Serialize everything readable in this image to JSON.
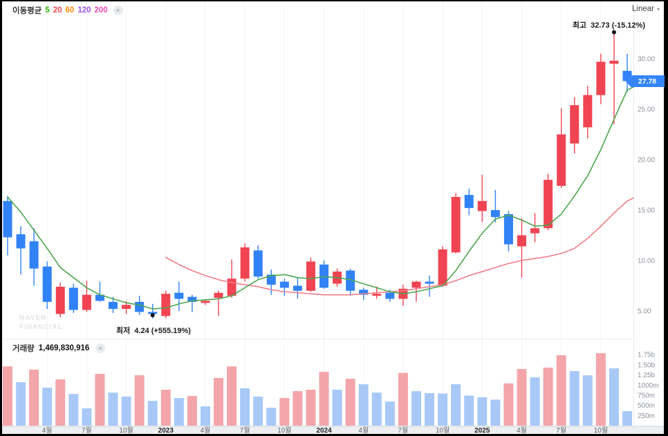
{
  "header": {
    "ma_label": "이동평균",
    "ma_periods": [
      {
        "label": "5",
        "color": "#2db400"
      },
      {
        "label": "20",
        "color": "#f04452"
      },
      {
        "label": "60",
        "color": "#ff8a00"
      },
      {
        "label": "120",
        "color": "#9b50e8"
      },
      {
        "label": "200",
        "color": "#ef4bb8"
      }
    ],
    "scale_selector": "Linear"
  },
  "icons": {
    "close": "×",
    "chevron_down": "▾"
  },
  "annotations": {
    "high_label": "최고",
    "high_value": "32.73 (-15.12%)",
    "low_label": "최저",
    "low_value": "4.24 (+555.19%)"
  },
  "volume_header": {
    "label": "거래량",
    "value": "1,469,830,916"
  },
  "price_badge": "27.78",
  "watermark": {
    "line1": "NAVER",
    "line2": "FINANCIAL"
  },
  "colors": {
    "up": "#f04452",
    "down": "#3182f6",
    "vol_up": "#f4a5aa",
    "vol_down": "#a8c9f8",
    "ma5_line": "#4ca64c",
    "ma20_line": "#ef7e86",
    "badge": "#3485fa",
    "grid": "#f1f2f5",
    "axis_text": "#8b919b",
    "strip_bg": "#edeff2",
    "strip_border": "#cdd0d5",
    "time_text": "#5f646c",
    "year_text": "#1f2124",
    "dot": "#141414"
  },
  "chart_data": {
    "type": "candlestick_with_volume",
    "title": "",
    "x_unit": "month",
    "months": [
      "2022-01",
      "2022-02",
      "2022-03",
      "2022-04",
      "2022-05",
      "2022-06",
      "2022-07",
      "2022-08",
      "2022-09",
      "2022-10",
      "2022-11",
      "2022-12",
      "2023-01",
      "2023-02",
      "2023-03",
      "2023-04",
      "2023-05",
      "2023-06",
      "2023-07",
      "2023-08",
      "2023-09",
      "2023-10",
      "2023-11",
      "2023-12",
      "2024-01",
      "2024-02",
      "2024-03",
      "2024-04",
      "2024-05",
      "2024-06",
      "2024-07",
      "2024-08",
      "2024-09",
      "2024-10",
      "2024-11",
      "2024-12",
      "2025-01",
      "2025-02",
      "2025-03",
      "2025-04",
      "2025-05",
      "2025-06",
      "2025-07",
      "2025-08",
      "2025-09",
      "2025-10",
      "2025-11",
      "2025-12"
    ],
    "candles_ohlc": [
      [
        15.9,
        16.4,
        10.5,
        12.3
      ],
      [
        12.6,
        13.4,
        8.6,
        11.2
      ],
      [
        11.9,
        13.2,
        7.5,
        9.2
      ],
      [
        9.4,
        9.9,
        5.2,
        5.9
      ],
      [
        4.7,
        7.8,
        4.4,
        7.4
      ],
      [
        7.3,
        7.7,
        4.8,
        5.1
      ],
      [
        5.1,
        8.0,
        4.9,
        6.6
      ],
      [
        6.6,
        7.9,
        5.9,
        6.0
      ],
      [
        5.9,
        6.4,
        4.8,
        5.2
      ],
      [
        5.2,
        6.0,
        4.7,
        5.6
      ],
      [
        5.9,
        6.5,
        4.6,
        4.9
      ],
      [
        4.9,
        5.7,
        4.24,
        4.7
      ],
      [
        4.5,
        7.0,
        4.3,
        6.7
      ],
      [
        6.8,
        7.9,
        5.0,
        6.2
      ],
      [
        6.4,
        6.6,
        4.9,
        5.9
      ],
      [
        5.8,
        6.1,
        5.6,
        6.0
      ],
      [
        6.3,
        7.0,
        4.5,
        6.8
      ],
      [
        6.5,
        10.1,
        6.3,
        8.2
      ],
      [
        8.2,
        11.7,
        7.9,
        11.3
      ],
      [
        11.0,
        11.5,
        8.2,
        8.4
      ],
      [
        8.6,
        9.1,
        6.6,
        7.6
      ],
      [
        7.9,
        8.2,
        6.5,
        7.3
      ],
      [
        7.5,
        8.3,
        6.2,
        7.0
      ],
      [
        7.0,
        10.3,
        6.9,
        9.9
      ],
      [
        9.6,
        10.0,
        7.2,
        7.3
      ],
      [
        7.7,
        9.2,
        7.4,
        8.9
      ],
      [
        9.0,
        9.2,
        6.5,
        7.0
      ],
      [
        7.1,
        7.3,
        6.1,
        6.6
      ],
      [
        6.5,
        7.4,
        6.2,
        6.7
      ],
      [
        6.8,
        7.1,
        5.9,
        6.2
      ],
      [
        6.2,
        7.6,
        5.5,
        7.2
      ],
      [
        7.3,
        8.0,
        5.9,
        7.9
      ],
      [
        7.9,
        8.5,
        6.4,
        7.7
      ],
      [
        7.5,
        11.4,
        7.4,
        11.1
      ],
      [
        10.8,
        16.7,
        10.7,
        16.3
      ],
      [
        16.5,
        17.1,
        14.5,
        15.2
      ],
      [
        14.9,
        18.5,
        13.8,
        15.9
      ],
      [
        15.0,
        17.0,
        13.8,
        14.3
      ],
      [
        14.6,
        14.9,
        10.9,
        11.6
      ],
      [
        11.4,
        14.2,
        8.3,
        12.5
      ],
      [
        12.7,
        14.7,
        11.8,
        13.2
      ],
      [
        13.2,
        18.6,
        13.0,
        18.0
      ],
      [
        17.4,
        25.1,
        17.2,
        22.5
      ],
      [
        21.6,
        26.2,
        20.6,
        25.4
      ],
      [
        23.2,
        27.3,
        22.1,
        26.4
      ],
      [
        26.4,
        30.5,
        25.5,
        29.7
      ],
      [
        29.5,
        32.73,
        23.5,
        29.8
      ],
      [
        28.8,
        30.5,
        26.7,
        27.78
      ]
    ],
    "volumes_millions": [
      1460,
      1070,
      1380,
      935,
      1140,
      780,
      425,
      1275,
      815,
      715,
      1240,
      610,
      885,
      680,
      730,
      475,
      1175,
      1460,
      920,
      715,
      440,
      680,
      850,
      885,
      1325,
      885,
      1155,
      1020,
      815,
      595,
      1300,
      850,
      800,
      790,
      1020,
      740,
      700,
      640,
      1040,
      1395,
      1190,
      1430,
      1735,
      1345,
      1240,
      1785,
      1410,
      357
    ],
    "volume_dir": [
      "u",
      "d",
      "u",
      "d",
      "u",
      "d",
      "d",
      "u",
      "d",
      "d",
      "u",
      "d",
      "u",
      "d",
      "u",
      "d",
      "u",
      "u",
      "d",
      "d",
      "d",
      "u",
      "u",
      "u",
      "u",
      "d",
      "u",
      "d",
      "d",
      "d",
      "u",
      "d",
      "d",
      "d",
      "d",
      "d",
      "d",
      "d",
      "u",
      "u",
      "d",
      "u",
      "u",
      "d",
      "d",
      "u",
      "d",
      "d"
    ],
    "ma5": {
      "start_index": 0,
      "edge_value": 27.2,
      "values": [
        16.3,
        14.8,
        13.0,
        11.2,
        9.3,
        8.3,
        7.3,
        6.6,
        6.2,
        5.8,
        5.6,
        5.2,
        5.3,
        5.7,
        6.0,
        6.1,
        6.2,
        6.5,
        7.3,
        8.1,
        8.5,
        8.6,
        8.3,
        8.2,
        8.4,
        8.3,
        8.1,
        7.7,
        7.3,
        6.9,
        6.7,
        6.9,
        7.2,
        7.5,
        9.0,
        10.9,
        12.7,
        14.1,
        14.5,
        14.0,
        13.4,
        13.5,
        14.6,
        16.4,
        18.4,
        21.0,
        24.0,
        26.9
      ]
    },
    "ma20": {
      "start_index": 12,
      "edge_value": 16.2,
      "values": [
        10.3,
        9.6,
        9.0,
        8.5,
        8.1,
        7.8,
        7.6,
        7.4,
        7.1,
        6.9,
        6.8,
        6.7,
        6.6,
        6.6,
        6.6,
        6.7,
        6.8,
        6.9,
        7.0,
        7.2,
        7.4,
        7.6,
        8.0,
        8.5,
        8.9,
        9.3,
        9.7,
        10.0,
        10.2,
        10.4,
        10.7,
        11.2,
        12.2,
        13.4,
        14.7,
        15.9
      ]
    },
    "price_ticks": [
      {
        "value": 30,
        "label": "30.00"
      },
      {
        "value": 25,
        "label": "25.00"
      },
      {
        "value": 20,
        "label": "20.00"
      },
      {
        "value": 15,
        "label": "15.00"
      },
      {
        "value": 10,
        "label": "10.00"
      },
      {
        "value": 5,
        "label": "5.00"
      }
    ],
    "volume_ticks": [
      {
        "value": 1750,
        "label": "1.75b"
      },
      {
        "value": 1500,
        "label": "1.50b"
      },
      {
        "value": 1250,
        "label": "1.25b"
      },
      {
        "value": 1000,
        "label": "1000m"
      },
      {
        "value": 750,
        "label": "750m"
      },
      {
        "value": 500,
        "label": "500m"
      },
      {
        "value": 250,
        "label": "250m"
      }
    ],
    "time_axis": [
      {
        "index": 3,
        "label": "4월",
        "bold": false
      },
      {
        "index": 6,
        "label": "7월",
        "bold": false
      },
      {
        "index": 9,
        "label": "10월",
        "bold": false
      },
      {
        "index": 12,
        "label": "2023",
        "bold": true
      },
      {
        "index": 15,
        "label": "4월",
        "bold": false
      },
      {
        "index": 18,
        "label": "7월",
        "bold": false
      },
      {
        "index": 21,
        "label": "10월",
        "bold": false
      },
      {
        "index": 24,
        "label": "2024",
        "bold": true
      },
      {
        "index": 27,
        "label": "4월",
        "bold": false
      },
      {
        "index": 30,
        "label": "7월",
        "bold": false
      },
      {
        "index": 33,
        "label": "10월",
        "bold": false
      },
      {
        "index": 36,
        "label": "2025",
        "bold": true
      },
      {
        "index": 39,
        "label": "4월",
        "bold": false
      },
      {
        "index": 42,
        "label": "7월",
        "bold": false
      },
      {
        "index": 45,
        "label": "10월",
        "bold": false
      }
    ],
    "high_point": {
      "index": 46,
      "price": 32.73
    },
    "low_point": {
      "index": 11,
      "price": 4.24
    },
    "current_close": 27.78,
    "ylim_price": [
      3.5,
      33.5
    ],
    "ylim_volume_millions": [
      0,
      1900
    ],
    "legend_position": "top-left",
    "grid": "vertical-only"
  }
}
